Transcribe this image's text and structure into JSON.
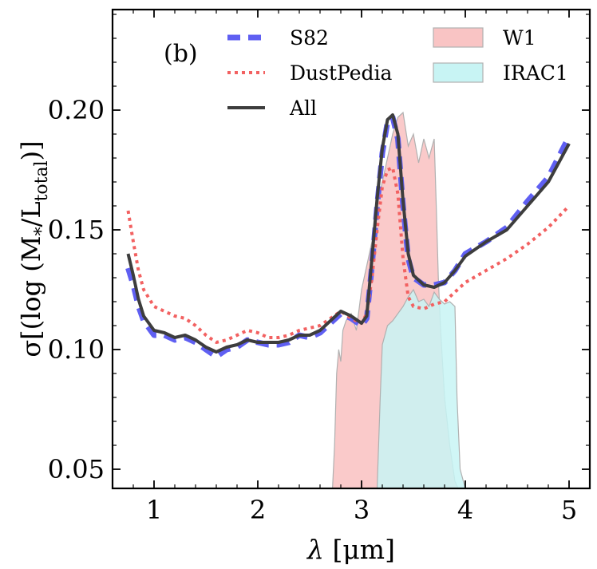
{
  "chart_data": {
    "type": "line",
    "panel_label": "(b)",
    "xlabel_symbol": "λ",
    "xlabel_unit": "[μm]",
    "ylabel_text": "σ[(log (M",
    "ylabel_sub": "*",
    "ylabel_mid": "/L",
    "ylabel_sub2": "total",
    "ylabel_end": ")]",
    "xlim": [
      0.6,
      5.2
    ],
    "ylim": [
      0.042,
      0.242
    ],
    "xticks": [
      1,
      2,
      3,
      4,
      5
    ],
    "xtick_labels": [
      "1",
      "2",
      "3",
      "4",
      "5"
    ],
    "yticks": [
      0.05,
      0.1,
      0.15,
      0.2
    ],
    "ytick_labels": [
      "0.05",
      "0.10",
      "0.15",
      "0.20"
    ],
    "legend": [
      {
        "name": "S82",
        "style": "dashed",
        "color": "#5f5ff2"
      },
      {
        "name": "DustPedia",
        "style": "dotted",
        "color": "#f26161"
      },
      {
        "name": "All",
        "style": "solid",
        "color": "#3d3d3d"
      },
      {
        "name": "W1",
        "style": "fill",
        "color": "#f9c4c4"
      },
      {
        "name": "IRAC1",
        "style": "fill",
        "color": "#c8f4f4"
      }
    ],
    "series": [
      {
        "name": "S82",
        "x": [
          0.75,
          0.8,
          0.85,
          0.9,
          1.0,
          1.1,
          1.2,
          1.3,
          1.4,
          1.5,
          1.6,
          1.7,
          1.8,
          1.9,
          2.0,
          2.1,
          2.2,
          2.3,
          2.4,
          2.5,
          2.6,
          2.7,
          2.8,
          2.9,
          3.0,
          3.05,
          3.1,
          3.15,
          3.2,
          3.25,
          3.3,
          3.35,
          3.4,
          3.45,
          3.5,
          3.6,
          3.7,
          3.8,
          3.9,
          4.0,
          4.2,
          4.4,
          4.6,
          4.8,
          5.0
        ],
        "y": [
          0.134,
          0.127,
          0.118,
          0.112,
          0.106,
          0.106,
          0.104,
          0.105,
          0.103,
          0.1,
          0.097,
          0.1,
          0.101,
          0.104,
          0.103,
          0.102,
          0.102,
          0.103,
          0.106,
          0.105,
          0.107,
          0.111,
          0.115,
          0.113,
          0.11,
          0.113,
          0.135,
          0.16,
          0.182,
          0.195,
          0.197,
          0.188,
          0.16,
          0.138,
          0.13,
          0.127,
          0.127,
          0.128,
          0.133,
          0.14,
          0.145,
          0.151,
          0.162,
          0.172,
          0.189
        ]
      },
      {
        "name": "DustPedia",
        "x": [
          0.75,
          0.8,
          0.85,
          0.9,
          1.0,
          1.1,
          1.2,
          1.3,
          1.4,
          1.5,
          1.6,
          1.7,
          1.8,
          1.9,
          2.0,
          2.1,
          2.2,
          2.3,
          2.4,
          2.5,
          2.6,
          2.7,
          2.8,
          2.9,
          3.0,
          3.05,
          3.1,
          3.15,
          3.2,
          3.25,
          3.3,
          3.35,
          3.4,
          3.45,
          3.5,
          3.6,
          3.7,
          3.8,
          3.9,
          4.0,
          4.2,
          4.4,
          4.6,
          4.8,
          5.0
        ],
        "y": [
          0.158,
          0.145,
          0.133,
          0.125,
          0.118,
          0.116,
          0.114,
          0.113,
          0.11,
          0.106,
          0.103,
          0.104,
          0.106,
          0.108,
          0.107,
          0.105,
          0.105,
          0.106,
          0.108,
          0.109,
          0.11,
          0.113,
          0.116,
          0.113,
          0.111,
          0.115,
          0.13,
          0.15,
          0.168,
          0.175,
          0.176,
          0.165,
          0.138,
          0.122,
          0.118,
          0.117,
          0.119,
          0.12,
          0.124,
          0.128,
          0.133,
          0.138,
          0.144,
          0.151,
          0.16
        ]
      },
      {
        "name": "All",
        "x": [
          0.75,
          0.8,
          0.85,
          0.9,
          1.0,
          1.1,
          1.2,
          1.3,
          1.4,
          1.5,
          1.6,
          1.7,
          1.8,
          1.9,
          2.0,
          2.1,
          2.2,
          2.3,
          2.4,
          2.5,
          2.6,
          2.7,
          2.8,
          2.9,
          3.0,
          3.05,
          3.1,
          3.15,
          3.2,
          3.25,
          3.3,
          3.35,
          3.4,
          3.45,
          3.5,
          3.6,
          3.7,
          3.8,
          3.9,
          4.0,
          4.2,
          4.4,
          4.6,
          4.8,
          5.0
        ],
        "y": [
          0.14,
          0.131,
          0.121,
          0.114,
          0.108,
          0.107,
          0.105,
          0.106,
          0.104,
          0.101,
          0.099,
          0.101,
          0.102,
          0.104,
          0.103,
          0.103,
          0.103,
          0.104,
          0.106,
          0.106,
          0.108,
          0.112,
          0.116,
          0.114,
          0.111,
          0.114,
          0.138,
          0.163,
          0.184,
          0.196,
          0.198,
          0.19,
          0.162,
          0.14,
          0.131,
          0.127,
          0.126,
          0.128,
          0.133,
          0.139,
          0.145,
          0.15,
          0.16,
          0.17,
          0.186
        ]
      }
    ],
    "fills": [
      {
        "name": "W1",
        "x": [
          2.72,
          2.74,
          2.76,
          2.78,
          2.8,
          2.82,
          2.85,
          2.9,
          2.95,
          3.0,
          3.05,
          3.1,
          3.15,
          3.2,
          3.25,
          3.3,
          3.35,
          3.4,
          3.45,
          3.5,
          3.55,
          3.6,
          3.65,
          3.7,
          3.72,
          3.74,
          3.76,
          3.8,
          3.85,
          3.9,
          3.93
        ],
        "y": [
          0.042,
          0.06,
          0.09,
          0.1,
          0.095,
          0.108,
          0.112,
          0.115,
          0.108,
          0.125,
          0.135,
          0.145,
          0.16,
          0.17,
          0.18,
          0.19,
          0.197,
          0.199,
          0.185,
          0.19,
          0.178,
          0.188,
          0.18,
          0.188,
          0.16,
          0.13,
          0.11,
          0.08,
          0.06,
          0.045,
          0.042
        ]
      },
      {
        "name": "IRAC1",
        "x": [
          3.15,
          3.18,
          3.2,
          3.25,
          3.3,
          3.35,
          3.4,
          3.45,
          3.5,
          3.55,
          3.6,
          3.65,
          3.7,
          3.75,
          3.8,
          3.85,
          3.9,
          3.92,
          3.95,
          4.0
        ],
        "y": [
          0.042,
          0.08,
          0.102,
          0.11,
          0.112,
          0.115,
          0.118,
          0.122,
          0.125,
          0.12,
          0.121,
          0.118,
          0.124,
          0.121,
          0.119,
          0.12,
          0.118,
          0.08,
          0.05,
          0.042
        ]
      }
    ]
  }
}
